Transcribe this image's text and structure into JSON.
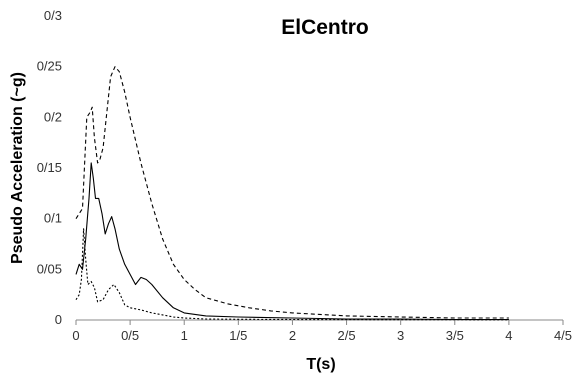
{
  "chart_data": {
    "type": "line",
    "title": "ElCentro",
    "xlabel": "T(s)",
    "ylabel": "Pseudo Acceleration (~g)",
    "xlim": [
      0,
      4.5
    ],
    "ylim": [
      0,
      0.3
    ],
    "x_ticks": [
      0,
      0.5,
      1,
      1.5,
      2,
      2.5,
      3,
      3.5,
      4,
      4.5
    ],
    "x_tick_labels": [
      "0",
      "0/5",
      "1",
      "1/5",
      "2",
      "2/5",
      "3",
      "3/5",
      "4",
      "4/5"
    ],
    "y_ticks": [
      0,
      0.05,
      0.1,
      0.15,
      0.2,
      0.25,
      0.3
    ],
    "y_tick_labels": [
      "0",
      "0/05",
      "0/1",
      "0/15",
      "0/2",
      "0/25",
      "0/3"
    ],
    "grid": false,
    "legend": "none",
    "series": [
      {
        "style": "dashed",
        "color": "#000000",
        "x": [
          0,
          0.03,
          0.06,
          0.1,
          0.13,
          0.15,
          0.17,
          0.2,
          0.22,
          0.25,
          0.28,
          0.32,
          0.36,
          0.4,
          0.45,
          0.5,
          0.6,
          0.7,
          0.8,
          0.9,
          1.0,
          1.1,
          1.2,
          1.4,
          1.6,
          1.8,
          2.0,
          2.5,
          3.0,
          3.5,
          4.0
        ],
        "y": [
          0.1,
          0.105,
          0.11,
          0.2,
          0.205,
          0.21,
          0.18,
          0.155,
          0.158,
          0.17,
          0.2,
          0.24,
          0.25,
          0.245,
          0.225,
          0.2,
          0.155,
          0.115,
          0.08,
          0.055,
          0.04,
          0.03,
          0.022,
          0.016,
          0.012,
          0.009,
          0.007,
          0.004,
          0.003,
          0.002,
          0.002
        ]
      },
      {
        "style": "solid",
        "color": "#000000",
        "x": [
          0,
          0.03,
          0.06,
          0.09,
          0.12,
          0.14,
          0.16,
          0.18,
          0.21,
          0.24,
          0.27,
          0.3,
          0.33,
          0.36,
          0.4,
          0.45,
          0.5,
          0.55,
          0.6,
          0.65,
          0.7,
          0.8,
          0.9,
          1.0,
          1.2,
          1.5,
          2.0,
          2.5,
          3.0,
          3.5,
          4.0
        ],
        "y": [
          0.045,
          0.055,
          0.05,
          0.08,
          0.12,
          0.155,
          0.14,
          0.12,
          0.12,
          0.105,
          0.085,
          0.095,
          0.102,
          0.09,
          0.07,
          0.055,
          0.045,
          0.035,
          0.042,
          0.04,
          0.035,
          0.022,
          0.012,
          0.007,
          0.004,
          0.003,
          0.002,
          0.001,
          0.001,
          0.0005,
          0.0005
        ]
      },
      {
        "style": "dotted",
        "color": "#000000",
        "x": [
          0,
          0.03,
          0.05,
          0.07,
          0.09,
          0.11,
          0.14,
          0.17,
          0.2,
          0.25,
          0.3,
          0.35,
          0.4,
          0.45,
          0.5,
          0.6,
          0.7,
          0.8,
          0.9,
          1.0,
          1.2,
          1.5,
          2.0,
          3.0,
          4.0
        ],
        "y": [
          0.02,
          0.025,
          0.04,
          0.09,
          0.06,
          0.035,
          0.038,
          0.032,
          0.018,
          0.02,
          0.03,
          0.035,
          0.027,
          0.015,
          0.012,
          0.01,
          0.007,
          0.005,
          0.003,
          0.002,
          0.001,
          0.0007,
          0.0005,
          0.0003,
          0.0002
        ]
      }
    ]
  }
}
